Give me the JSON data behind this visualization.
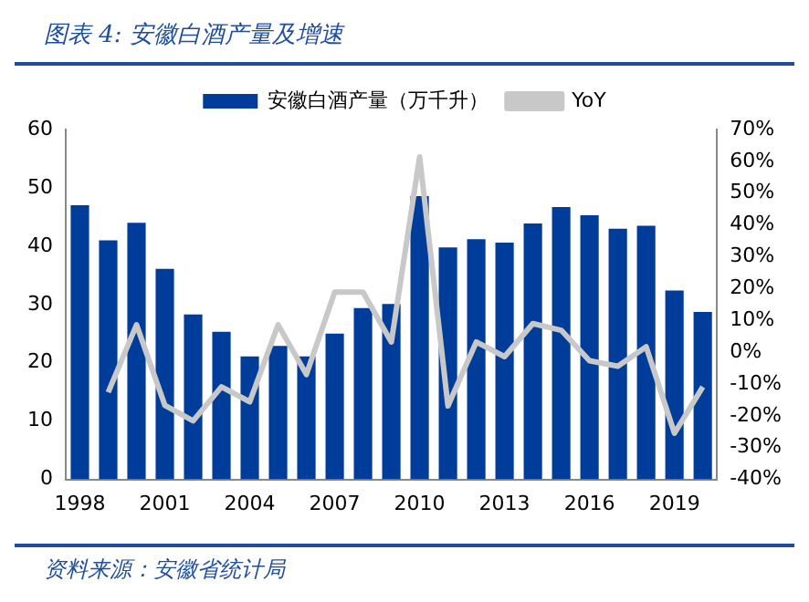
{
  "chart_data": {
    "type": "bar",
    "title": "图表 4:  安徽白酒产量及增速",
    "categories": [
      "1998",
      null,
      null,
      "2001",
      null,
      null,
      "2004",
      null,
      null,
      "2007",
      null,
      null,
      "2010",
      null,
      null,
      "2013",
      null,
      null,
      "2016",
      null,
      null,
      "2019",
      null
    ],
    "series": [
      {
        "name": "安徽白酒产量（万千升）",
        "color": "#003c9a",
        "values": [
          47,
          41,
          44,
          36.1,
          28.3,
          25.3,
          21.1,
          22.9,
          21.1,
          25,
          29.4,
          30.1,
          48.6,
          39.8,
          41.2,
          40.6,
          43.9,
          46.7,
          45.3,
          43,
          43.5,
          32.4,
          28.7
        ]
      },
      {
        "name": "YoY",
        "type": "line",
        "axis": "y2",
        "color": "#c8c8c8",
        "values": [
          null,
          -12.6,
          8.6,
          -16.7,
          -21.6,
          -10.9,
          -15.6,
          8.6,
          -7,
          18.9,
          18.9,
          3.2,
          61.4,
          -16.9,
          3.2,
          -1.4,
          9,
          6.9,
          -2.7,
          -4.4,
          1.7,
          -25.5,
          -10.9
        ]
      }
    ],
    "ylim": [
      0,
      60
    ],
    "yticks": [
      0,
      10,
      20,
      30,
      40,
      50,
      60
    ],
    "y2lim": [
      -40,
      70
    ],
    "y2ticks": [
      {
        "value": -40,
        "label": "-40%"
      },
      {
        "value": -30,
        "label": "-30%"
      },
      {
        "value": -20,
        "label": "-20%"
      },
      {
        "value": -10,
        "label": "-10%"
      },
      {
        "value": 0,
        "label": "0%"
      },
      {
        "value": 10,
        "label": "10%"
      },
      {
        "value": 20,
        "label": "20%"
      },
      {
        "value": 30,
        "label": "30%"
      },
      {
        "value": 40,
        "label": "40%"
      },
      {
        "value": 50,
        "label": "50%"
      },
      {
        "value": 60,
        "label": "60%"
      },
      {
        "value": 70,
        "label": "70%"
      }
    ],
    "grid": false,
    "legend": "top",
    "marker": "none",
    "annotations": [
      "资料来源：安徽省统计局"
    ]
  }
}
